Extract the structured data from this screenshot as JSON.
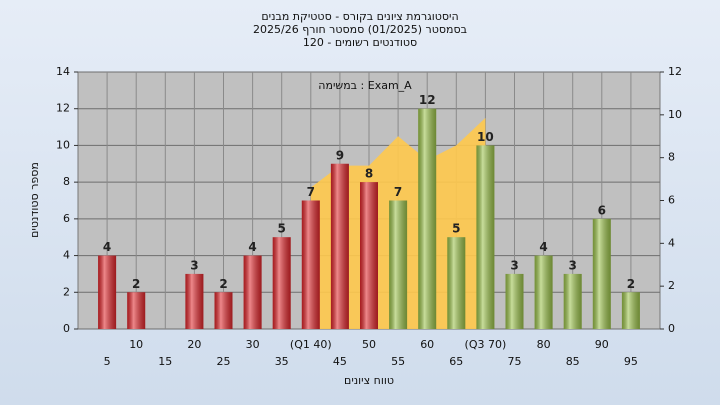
{
  "chart_data": {
    "type": "bar",
    "title": [
      "היסטוגרמת ציונים בקורס - סטטיקת מבנים",
      "בסמסטר (01/2025) סמסטר חורף 2025/26",
      "סטודנטים רשומים - 120"
    ],
    "annotation": "במשימה : Exam_A",
    "y_label": "מספר סטודנטים",
    "x_label": "טווח ציונים",
    "categories": [
      "5",
      "10",
      "15",
      "20",
      "25",
      "30",
      "35",
      "(Q1 40)",
      "45",
      "50",
      "55",
      "60",
      "65",
      "(Q3 70)",
      "75",
      "80",
      "85",
      "90",
      "95"
    ],
    "values": [
      4,
      2,
      null,
      3,
      2,
      4,
      5,
      7,
      9,
      8,
      7,
      12,
      5,
      10,
      3,
      4,
      3,
      6,
      2
    ],
    "bar_colors": [
      "#e0262b",
      "#e0262b",
      "#e0262b",
      "#e0262b",
      "#e0262b",
      "#e0262b",
      "#e0262b",
      "#e0262b",
      "#e0262b",
      "#e0262b",
      "#9bc24a",
      "#9bc24a",
      "#9bc24a",
      "#9bc24a",
      "#9bc24a",
      "#9bc24a",
      "#9bc24a",
      "#9bc24a",
      "#9bc24a"
    ],
    "band": {
      "color": "#ffc94d",
      "values": [
        null,
        null,
        null,
        null,
        null,
        null,
        null,
        7.7,
        8.9,
        8.9,
        10.5,
        9.2,
        10,
        11.5,
        null,
        null,
        null,
        null,
        null
      ]
    },
    "ylim": [
      0,
      14
    ],
    "yticks": [
      0,
      2,
      4,
      6,
      8,
      10,
      12,
      14
    ],
    "y2lim": [
      0,
      12
    ],
    "y2ticks": [
      0,
      2,
      4,
      6,
      8,
      10,
      12
    ],
    "grid": true
  }
}
